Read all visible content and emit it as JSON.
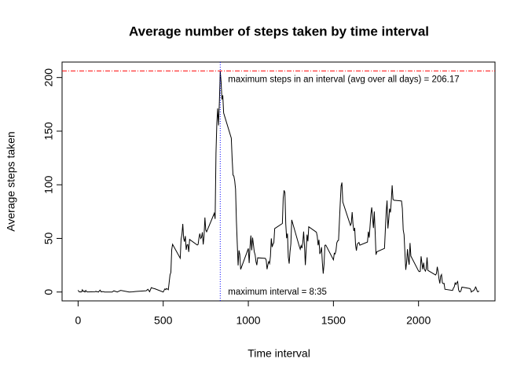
{
  "chart_data": {
    "type": "line",
    "title": "Average number of steps taken by time interval",
    "x_label": "Time interval",
    "y_label": "Average steps taken",
    "xlim": [
      -94.2,
      2449.2
    ],
    "ylim": [
      -8.25,
      214.42
    ],
    "xticks": [
      0,
      500,
      1000,
      1500,
      2000
    ],
    "yticks": [
      0,
      50,
      100,
      150,
      200
    ],
    "series": [
      {
        "color": "#000000",
        "x": [
          0,
          5,
          10,
          15,
          20,
          25,
          30,
          35,
          40,
          45,
          50,
          55,
          100,
          105,
          110,
          115,
          120,
          125,
          130,
          135,
          140,
          145,
          150,
          155,
          200,
          210,
          230,
          250,
          300,
          320,
          340,
          400,
          410,
          420,
          430,
          440,
          450,
          500,
          505,
          510,
          515,
          520,
          530,
          540,
          545,
          550,
          555,
          600,
          605,
          610,
          615,
          620,
          625,
          630,
          635,
          640,
          645,
          650,
          655,
          700,
          705,
          710,
          715,
          720,
          725,
          730,
          735,
          740,
          745,
          750,
          755,
          800,
          805,
          810,
          815,
          820,
          825,
          830,
          835,
          840,
          845,
          850,
          855,
          900,
          905,
          910,
          915,
          920,
          925,
          930,
          935,
          940,
          945,
          950,
          955,
          1000,
          1005,
          1010,
          1015,
          1020,
          1025,
          1030,
          1035,
          1040,
          1045,
          1050,
          1055,
          1100,
          1105,
          1110,
          1115,
          1120,
          1125,
          1130,
          1135,
          1140,
          1145,
          1150,
          1155,
          1200,
          1205,
          1210,
          1215,
          1220,
          1225,
          1230,
          1235,
          1240,
          1245,
          1250,
          1255,
          1300,
          1305,
          1310,
          1315,
          1320,
          1325,
          1330,
          1335,
          1340,
          1345,
          1350,
          1355,
          1400,
          1405,
          1410,
          1415,
          1420,
          1425,
          1430,
          1435,
          1440,
          1445,
          1450,
          1455,
          1500,
          1505,
          1510,
          1515,
          1520,
          1525,
          1530,
          1535,
          1540,
          1545,
          1550,
          1555,
          1600,
          1605,
          1610,
          1615,
          1620,
          1625,
          1630,
          1635,
          1640,
          1645,
          1650,
          1655,
          1700,
          1705,
          1710,
          1715,
          1720,
          1725,
          1730,
          1735,
          1740,
          1745,
          1750,
          1755,
          1800,
          1805,
          1810,
          1815,
          1820,
          1825,
          1830,
          1835,
          1840,
          1845,
          1850,
          1855,
          1900,
          1905,
          1910,
          1915,
          1920,
          1925,
          1930,
          1935,
          1940,
          1945,
          1950,
          1955,
          2000,
          2005,
          2010,
          2015,
          2020,
          2025,
          2030,
          2035,
          2040,
          2045,
          2050,
          2055,
          2100,
          2105,
          2110,
          2115,
          2120,
          2125,
          2130,
          2135,
          2140,
          2145,
          2150,
          2155,
          2200,
          2205,
          2210,
          2215,
          2220,
          2225,
          2230,
          2235,
          2240,
          2245,
          2250,
          2255,
          2300,
          2305,
          2310,
          2315,
          2320,
          2325,
          2330,
          2335,
          2340,
          2345,
          2350,
          2355
        ],
        "values": [
          1.7,
          0.3,
          0.1,
          0.2,
          0.1,
          2.1,
          0.5,
          0.9,
          0,
          1.5,
          0.3,
          0.1,
          0.3,
          0.7,
          0.2,
          0.3,
          0,
          1.1,
          1.8,
          0.2,
          0.2,
          0.4,
          0.3,
          0,
          0,
          1.1,
          0,
          1.5,
          0,
          0.2,
          0.5,
          1.2,
          2.6,
          0.3,
          4.1,
          3.5,
          3.1,
          0,
          1.6,
          3,
          2.2,
          3.3,
          2.1,
          16,
          18.3,
          39.5,
          44.5,
          31.5,
          49.3,
          53.8,
          63.5,
          50,
          47,
          52.2,
          39.3,
          44,
          44.2,
          37.4,
          49,
          43.8,
          44.4,
          50.5,
          54.5,
          49.9,
          51,
          55.7,
          44.3,
          52.3,
          69.5,
          57.8,
          56.2,
          73.4,
          68.2,
          129.4,
          157.5,
          171.2,
          155.4,
          177.3,
          206.17,
          195.9,
          179.6,
          183.4,
          167,
          143.5,
          124,
          109.1,
          108.1,
          103.7,
          95.9,
          66.2,
          45.2,
          24.8,
          38.8,
          34.98,
          21.1,
          40.6,
          26.98,
          42.4,
          52.7,
          38.9,
          50.8,
          44.3,
          37.4,
          34.7,
          28.3,
          25.1,
          31.9,
          31.4,
          29.7,
          21.3,
          25.5,
          28.4,
          26.5,
          33.4,
          50,
          42,
          44.6,
          46,
          59.2,
          63.9,
          87.7,
          94.8,
          92.8,
          63.4,
          50.2,
          54.5,
          32.4,
          26.5,
          37.7,
          45.1,
          67.3,
          42.3,
          39.9,
          43.3,
          40.98,
          46.2,
          56.4,
          42.8,
          25.1,
          39.97,
          53.5,
          47.3,
          60.8,
          55.8,
          51.96,
          43.6,
          48.7,
          35.5,
          37.5,
          41.8,
          27.5,
          17.1,
          26.1,
          43.6,
          43.8,
          30,
          36.1,
          35.5,
          38.8,
          45.96,
          47.75,
          48.1,
          65.3,
          82.9,
          98.7,
          102.1,
          83.96,
          62.1,
          64.1,
          74.5,
          63.2,
          56.9,
          59.8,
          43.9,
          38.6,
          44.7,
          45.5,
          46.2,
          43.7,
          46.6,
          56.3,
          50.7,
          61.2,
          72.7,
          78.9,
          68.9,
          59.7,
          75.1,
          56.5,
          34.8,
          37.5,
          40.7,
          58,
          74.7,
          85.3,
          59.3,
          67.8,
          77.7,
          74.2,
          85.3,
          99.5,
          86.6,
          85.6,
          84.9,
          77.8,
          58,
          53.4,
          36.3,
          20.7,
          27.4,
          40,
          30.2,
          25.5,
          45.7,
          33.5,
          19.6,
          19,
          19.3,
          33.3,
          26.8,
          21.2,
          27.3,
          21.3,
          19.5,
          21.3,
          32.3,
          20.2,
          15.9,
          17.2,
          23.5,
          19.2,
          12.5,
          8,
          14.7,
          16.3,
          8.7,
          7.8,
          8.1,
          2.6,
          1.5,
          3.7,
          4.8,
          8.5,
          7.1,
          8.7,
          9.8,
          2.2,
          0.3,
          0.1,
          1.6,
          4.6,
          3.3,
          2.8,
          0,
          0.8,
          1,
          1.6,
          2.6,
          4.7,
          3.3,
          0.6,
          0.2,
          1.1
        ]
      }
    ],
    "hline": {
      "value": 206.17,
      "color": "#ff0000",
      "label": "maximum steps in an interval (avg over all days) = 206.17"
    },
    "vline": {
      "value": 835,
      "color": "#0000ff",
      "label": "maximum interval = 8:35"
    }
  }
}
